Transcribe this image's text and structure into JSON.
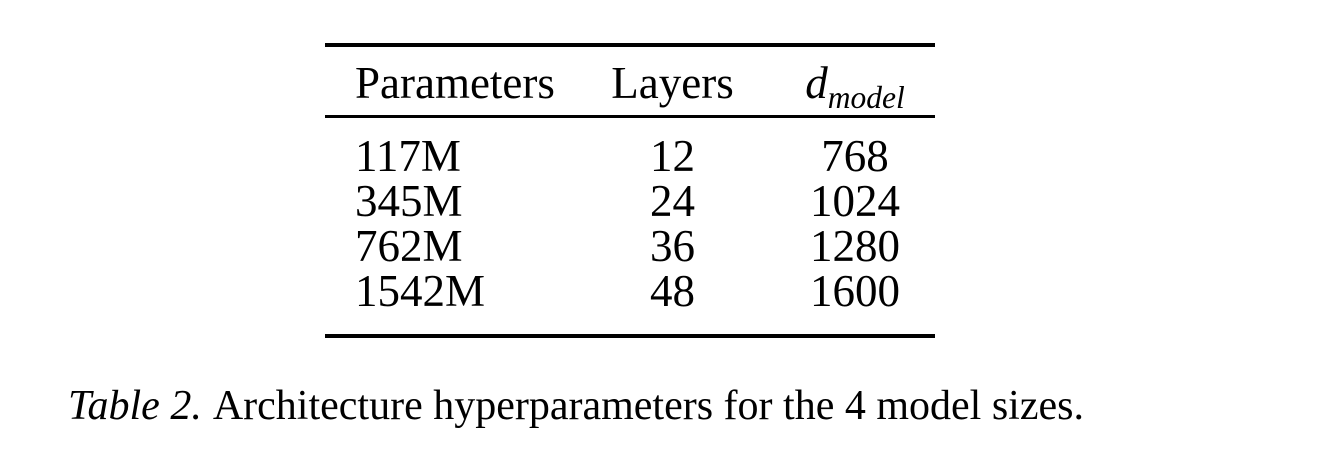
{
  "page": {
    "background_color": "#ffffff",
    "text_color": "#000000"
  },
  "table": {
    "headers": [
      {
        "label": "Parameters"
      },
      {
        "label": "Layers"
      },
      {
        "base": "d",
        "sub": "model"
      }
    ],
    "rows": [
      [
        "117M",
        "12",
        "768"
      ],
      [
        "345M",
        "24",
        "1024"
      ],
      [
        "762M",
        "36",
        "1280"
      ],
      [
        "1542M",
        "48",
        "1600"
      ]
    ]
  },
  "caption": {
    "label": "Table 2.",
    "text": "Architecture hyperparameters for the 4 model sizes."
  }
}
